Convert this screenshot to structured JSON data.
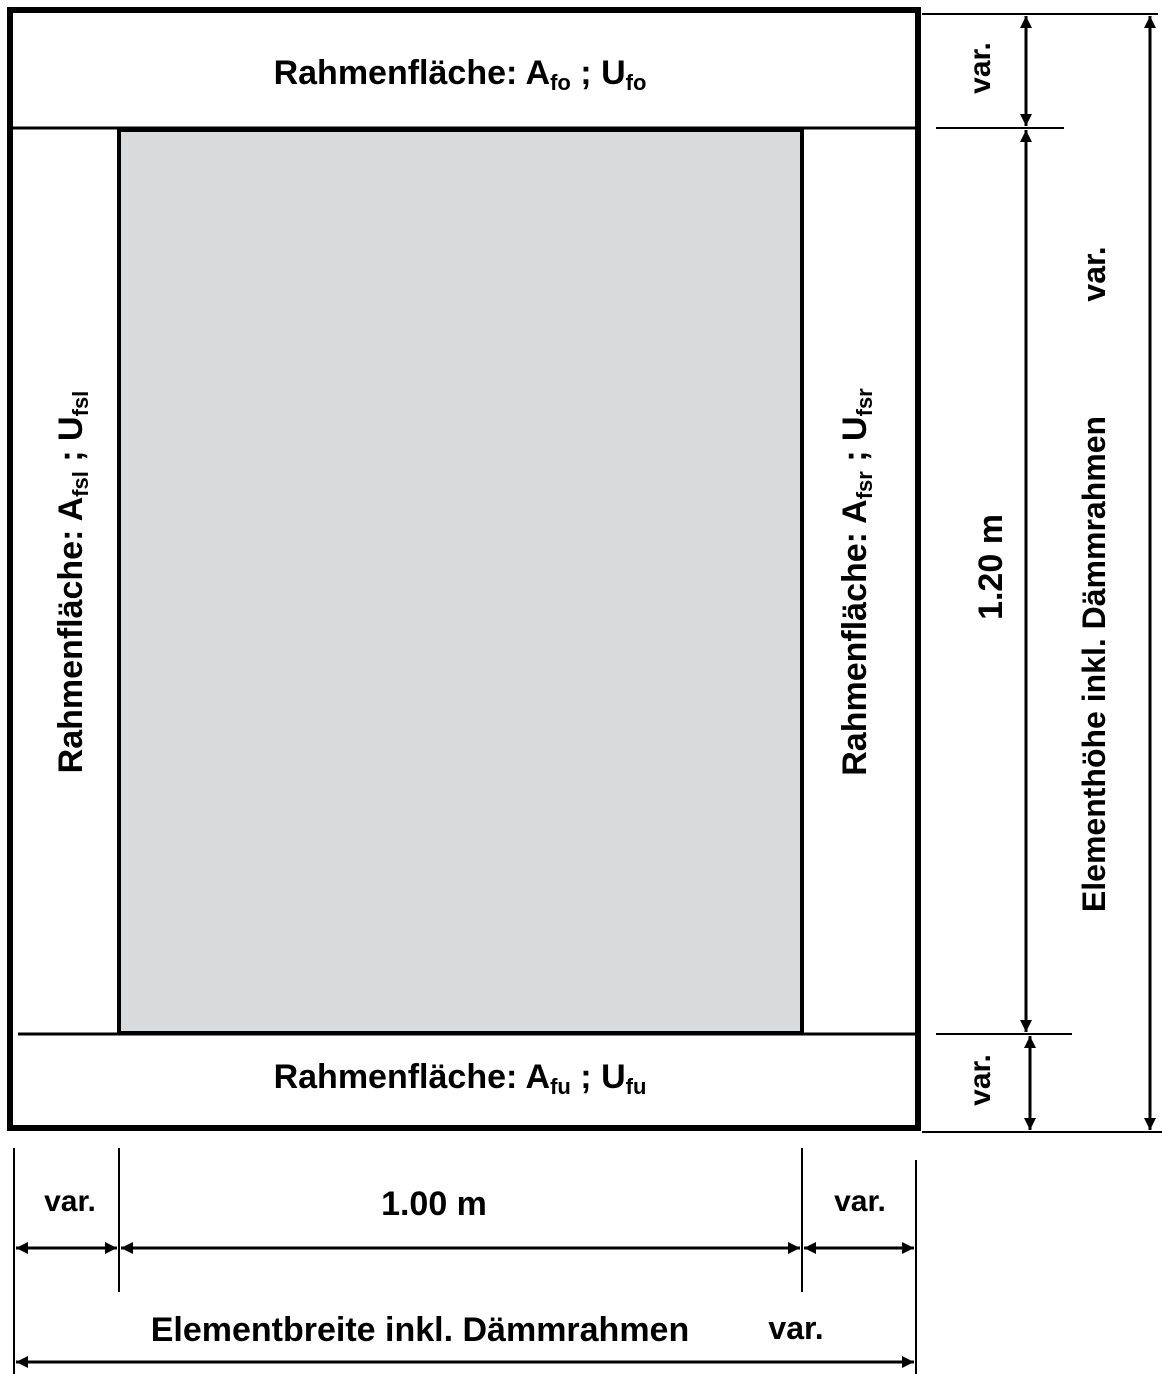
{
  "frame": {
    "top": {
      "label": "Rahmenfläche: ",
      "a": "A",
      "a_sub": "fo",
      "sep": " ; ",
      "u": "U",
      "u_sub": "fo"
    },
    "bottom": {
      "label": "Rahmenfläche: ",
      "a": "A",
      "a_sub": "fu",
      "sep": " ; ",
      "u": "U",
      "u_sub": "fu"
    },
    "left": {
      "label": "Rahmenfläche: ",
      "a": "A",
      "a_sub": "fsl",
      "sep": " ; ",
      "u": "U",
      "u_sub": "fsl"
    },
    "right": {
      "label": "Rahmenfläche: ",
      "a": "A",
      "a_sub": "fsr",
      "sep": " ; ",
      "u": "U",
      "u_sub": "fsr"
    }
  },
  "dimensions": {
    "height_top_var": "var.",
    "height_glass": "1.20 m",
    "height_bottom_var": "var.",
    "height_total_label": "Elementhöhe  inkl. Dämmrahmen",
    "height_total_var": "var.",
    "width_left_var": "var.",
    "width_glass": "1.00 m",
    "width_right_var": "var.",
    "width_total_label": "Elementbreite inkl. Dämmrahmen",
    "width_total_var": "var."
  },
  "colors": {
    "glass": "#d9dadb",
    "line": "#000000",
    "background": "#ffffff"
  }
}
